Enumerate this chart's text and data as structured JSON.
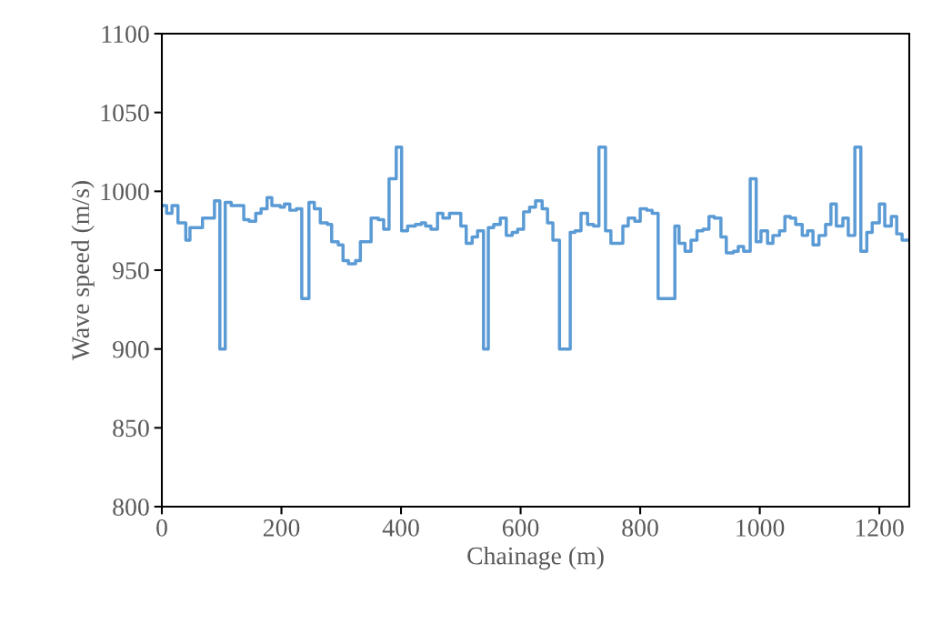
{
  "chart_data": {
    "type": "step",
    "xlabel": "Chainage (m)",
    "ylabel": "Wave speed (m/s)",
    "xlim": [
      0,
      1250
    ],
    "xticks": [
      0,
      200,
      400,
      600,
      800,
      1000,
      1200
    ],
    "ylim": [
      800,
      1100
    ],
    "yticks": [
      800,
      850,
      900,
      950,
      1000,
      1050,
      1100
    ],
    "grid": false,
    "legend": false,
    "marker": "none",
    "line_style": "solid",
    "series": [
      {
        "color": "#5b9bd5",
        "x": [
          0,
          8,
          17,
          27,
          40,
          47,
          68,
          88,
          97,
          106,
          116,
          137,
          146,
          157,
          166,
          176,
          184,
          198,
          205,
          214,
          225,
          234,
          246,
          255,
          265,
          277,
          284,
          295,
          303,
          312,
          324,
          332,
          350,
          362,
          371,
          380,
          392,
          401,
          411,
          424,
          434,
          441,
          450,
          461,
          470,
          481,
          500,
          509,
          519,
          528,
          538,
          546,
          555,
          566,
          576,
          586,
          595,
          605,
          615,
          625,
          636,
          645,
          654,
          665,
          683,
          691,
          701,
          712,
          722,
          731,
          742,
          751,
          771,
          780,
          791,
          800,
          811,
          820,
          830,
          858,
          865,
          875,
          885,
          895,
          905,
          915,
          924,
          935,
          944,
          956,
          964,
          973,
          984,
          994,
          1002,
          1013,
          1022,
          1033,
          1042,
          1051,
          1060,
          1071,
          1080,
          1089,
          1099,
          1110,
          1119,
          1128,
          1139,
          1148,
          1159,
          1169,
          1179,
          1188,
          1200,
          1209,
          1220,
          1229,
          1238,
          1250
        ],
        "values": [
          991,
          986,
          991,
          980,
          969,
          977,
          983,
          994,
          900,
          993,
          991,
          982,
          981,
          986,
          989,
          996,
          991,
          990,
          992,
          988,
          989,
          932,
          993,
          989,
          980,
          979,
          968,
          966,
          956,
          954,
          956,
          968,
          983,
          982,
          976,
          1008,
          1028,
          975,
          978,
          979,
          980,
          978,
          976,
          986,
          983,
          986,
          978,
          967,
          971,
          975,
          900,
          977,
          979,
          983,
          972,
          974,
          976,
          987,
          990,
          994,
          989,
          980,
          969,
          900,
          974,
          975,
          986,
          979,
          978,
          1028,
          975,
          967,
          978,
          983,
          981,
          989,
          988,
          986,
          932,
          978,
          967,
          962,
          969,
          975,
          976,
          984,
          983,
          971,
          961,
          962,
          965,
          962,
          1008,
          968,
          975,
          967,
          972,
          975,
          984,
          983,
          979,
          972,
          975,
          966,
          972,
          979,
          992,
          978,
          983,
          972,
          1028,
          962,
          974,
          980,
          992,
          978,
          984,
          973,
          969,
          969
        ]
      }
    ]
  }
}
